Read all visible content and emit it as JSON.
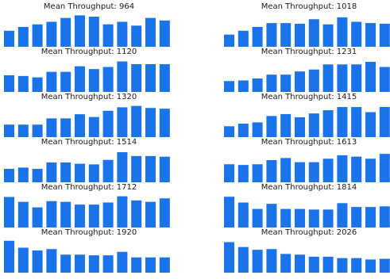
{
  "colors": {
    "bar": "#1a73e8",
    "background": "#ffffff",
    "text": "#1a1a1a"
  },
  "chart_data": [
    {
      "type": "bar",
      "title": "Mean Throughput: 964",
      "values": [
        12.5,
        15.5,
        17.5,
        19.5,
        22.5,
        24.5,
        23.5,
        17.5,
        19.5,
        16.5,
        22.5,
        20.5
      ],
      "ylim": [
        0,
        26
      ],
      "axes": false,
      "grid": false
    },
    {
      "type": "bar",
      "title": "Mean Throughput: 1018",
      "values": [
        9.5,
        12.5,
        15.5,
        18.5,
        18.5,
        18,
        21.5,
        17.5,
        23,
        19.5,
        18.5,
        18
      ],
      "ylim": [
        0,
        26
      ],
      "axes": false,
      "grid": false
    },
    {
      "type": "bar",
      "title": "Mean Throughput: 1120",
      "values": [
        12,
        11.5,
        10.5,
        14.5,
        14.5,
        18.5,
        16.5,
        18,
        22,
        20,
        20,
        20
      ],
      "ylim": [
        0,
        24
      ],
      "axes": false,
      "grid": false
    },
    {
      "type": "bar",
      "title": "Mean Throughput: 1231",
      "values": [
        8.5,
        9,
        10.5,
        13.5,
        13.5,
        16,
        17.5,
        21.5,
        21.5,
        21.5,
        23.5,
        19.5
      ],
      "ylim": [
        0,
        26
      ],
      "axes": false,
      "grid": false
    },
    {
      "type": "bar",
      "title": "Mean Throughput: 1320",
      "values": [
        9,
        9,
        9,
        13.5,
        13.5,
        16.5,
        14.5,
        19,
        21.5,
        22.5,
        21,
        20.5
      ],
      "ylim": [
        0,
        24
      ],
      "axes": false,
      "grid": false
    },
    {
      "type": "bar",
      "title": "Mean Throughput: 1415",
      "values": [
        8.5,
        10.5,
        11.5,
        16.5,
        18,
        15.5,
        18.5,
        21,
        23.5,
        23.5,
        19.5,
        23.5
      ],
      "ylim": [
        0,
        26
      ],
      "axes": false,
      "grid": false
    },
    {
      "type": "bar",
      "title": "Mean Throughput: 1514",
      "values": [
        10.5,
        11.5,
        10.5,
        15.5,
        15.5,
        14.5,
        14,
        17.5,
        23.5,
        20.5,
        20.5,
        20
      ],
      "ylim": [
        0,
        26
      ],
      "axes": false,
      "grid": false
    },
    {
      "type": "bar",
      "title": "Mean Throughput: 1613",
      "values": [
        13,
        12.5,
        13,
        16,
        17.5,
        14.5,
        14.5,
        17,
        19.5,
        18.5,
        17,
        20.5
      ],
      "ylim": [
        0,
        24
      ],
      "axes": false,
      "grid": false
    },
    {
      "type": "bar",
      "title": "Mean Throughput: 1712",
      "values": [
        22,
        18.5,
        14.5,
        19,
        18.5,
        16.5,
        16.5,
        18,
        22.5,
        19.5,
        18.5,
        21
      ],
      "ylim": [
        0,
        24
      ],
      "axes": false,
      "grid": false
    },
    {
      "type": "bar",
      "title": "Mean Throughput: 1814",
      "values": [
        24,
        19.5,
        14.5,
        18.5,
        14.5,
        14.5,
        14,
        14,
        19,
        16,
        16,
        16.5
      ],
      "ylim": [
        0,
        26
      ],
      "axes": false,
      "grid": false
    },
    {
      "type": "bar",
      "title": "Mean Throughput: 1920",
      "values": [
        23,
        18,
        16,
        17,
        13,
        13,
        12.5,
        12.5,
        15,
        11,
        11,
        11
      ],
      "ylim": [
        0,
        24
      ],
      "axes": false,
      "grid": false
    },
    {
      "type": "bar",
      "title": "Mean Throughput: 2026",
      "values": [
        22,
        18.5,
        16.5,
        17,
        13.5,
        13,
        11.5,
        11.5,
        10.5,
        10.5,
        9.5,
        10
      ],
      "ylim": [
        0,
        24
      ],
      "axes": false,
      "grid": false
    }
  ]
}
